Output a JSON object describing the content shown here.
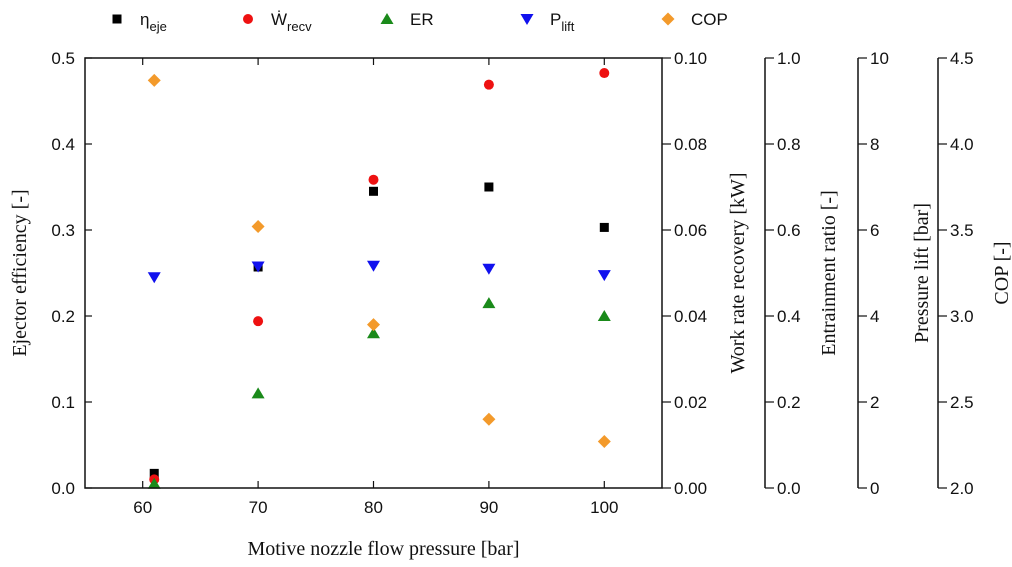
{
  "chart_data": {
    "type": "scatter",
    "x": [
      61,
      70,
      80,
      90,
      100
    ],
    "xlabel": "Motive nozzle flow pressure [bar]",
    "xlim": [
      55,
      105
    ],
    "xticks": [
      "60",
      "70",
      "80",
      "90",
      "100"
    ],
    "legend_position": "top",
    "series": [
      {
        "name": "η",
        "name_sub": "eje",
        "marker": "square",
        "color": "#000000",
        "axis_label": "Ejector efficiency [-]",
        "axis_side": "left",
        "ylim": [
          0,
          0.5
        ],
        "ticks": [
          "0.0",
          "0.1",
          "0.2",
          "0.3",
          "0.4",
          "0.5"
        ],
        "values": [
          0.017,
          0.257,
          0.345,
          0.35,
          0.303
        ]
      },
      {
        "name": "Ẇ",
        "name_sub": "recv",
        "marker": "circle",
        "color": "#ee1111",
        "axis_label": "Work rate recovery [kW]",
        "axis_side": "right",
        "ylim": [
          0,
          0.1
        ],
        "ticks": [
          "0.00",
          "0.02",
          "0.04",
          "0.06",
          "0.08",
          "0.10"
        ],
        "values": [
          0.002,
          0.0388,
          0.0717,
          0.0938,
          0.0965
        ]
      },
      {
        "name": "ER",
        "name_sub": "",
        "marker": "triangle-up",
        "color": "#1a8a1a",
        "axis_label": "Entrainment ratio [-]",
        "axis_side": "right",
        "ylim": [
          0,
          1.0
        ],
        "ticks": [
          "0.0",
          "0.2",
          "0.4",
          "0.6",
          "0.8",
          "1.0"
        ],
        "values": [
          0.01,
          0.22,
          0.36,
          0.43,
          0.4
        ]
      },
      {
        "name": "P",
        "name_sub": "lift",
        "marker": "triangle-down",
        "color": "#1111ee",
        "axis_label": "Pressure lift [bar]",
        "axis_side": "right",
        "ylim": [
          0,
          10
        ],
        "ticks": [
          "0",
          "2",
          "4",
          "6",
          "8",
          "10"
        ],
        "values": [
          4.9,
          5.15,
          5.17,
          5.1,
          4.95
        ]
      },
      {
        "name": "COP",
        "name_sub": "",
        "marker": "diamond",
        "color": "#f39a2b",
        "axis_label": "COP [-]",
        "axis_side": "right",
        "ylim": [
          2.0,
          4.5
        ],
        "ticks": [
          "2.0",
          "2.5",
          "3.0",
          "3.5",
          "4.0",
          "4.5"
        ],
        "values": [
          4.37,
          3.52,
          2.95,
          2.4,
          2.27
        ]
      }
    ]
  }
}
